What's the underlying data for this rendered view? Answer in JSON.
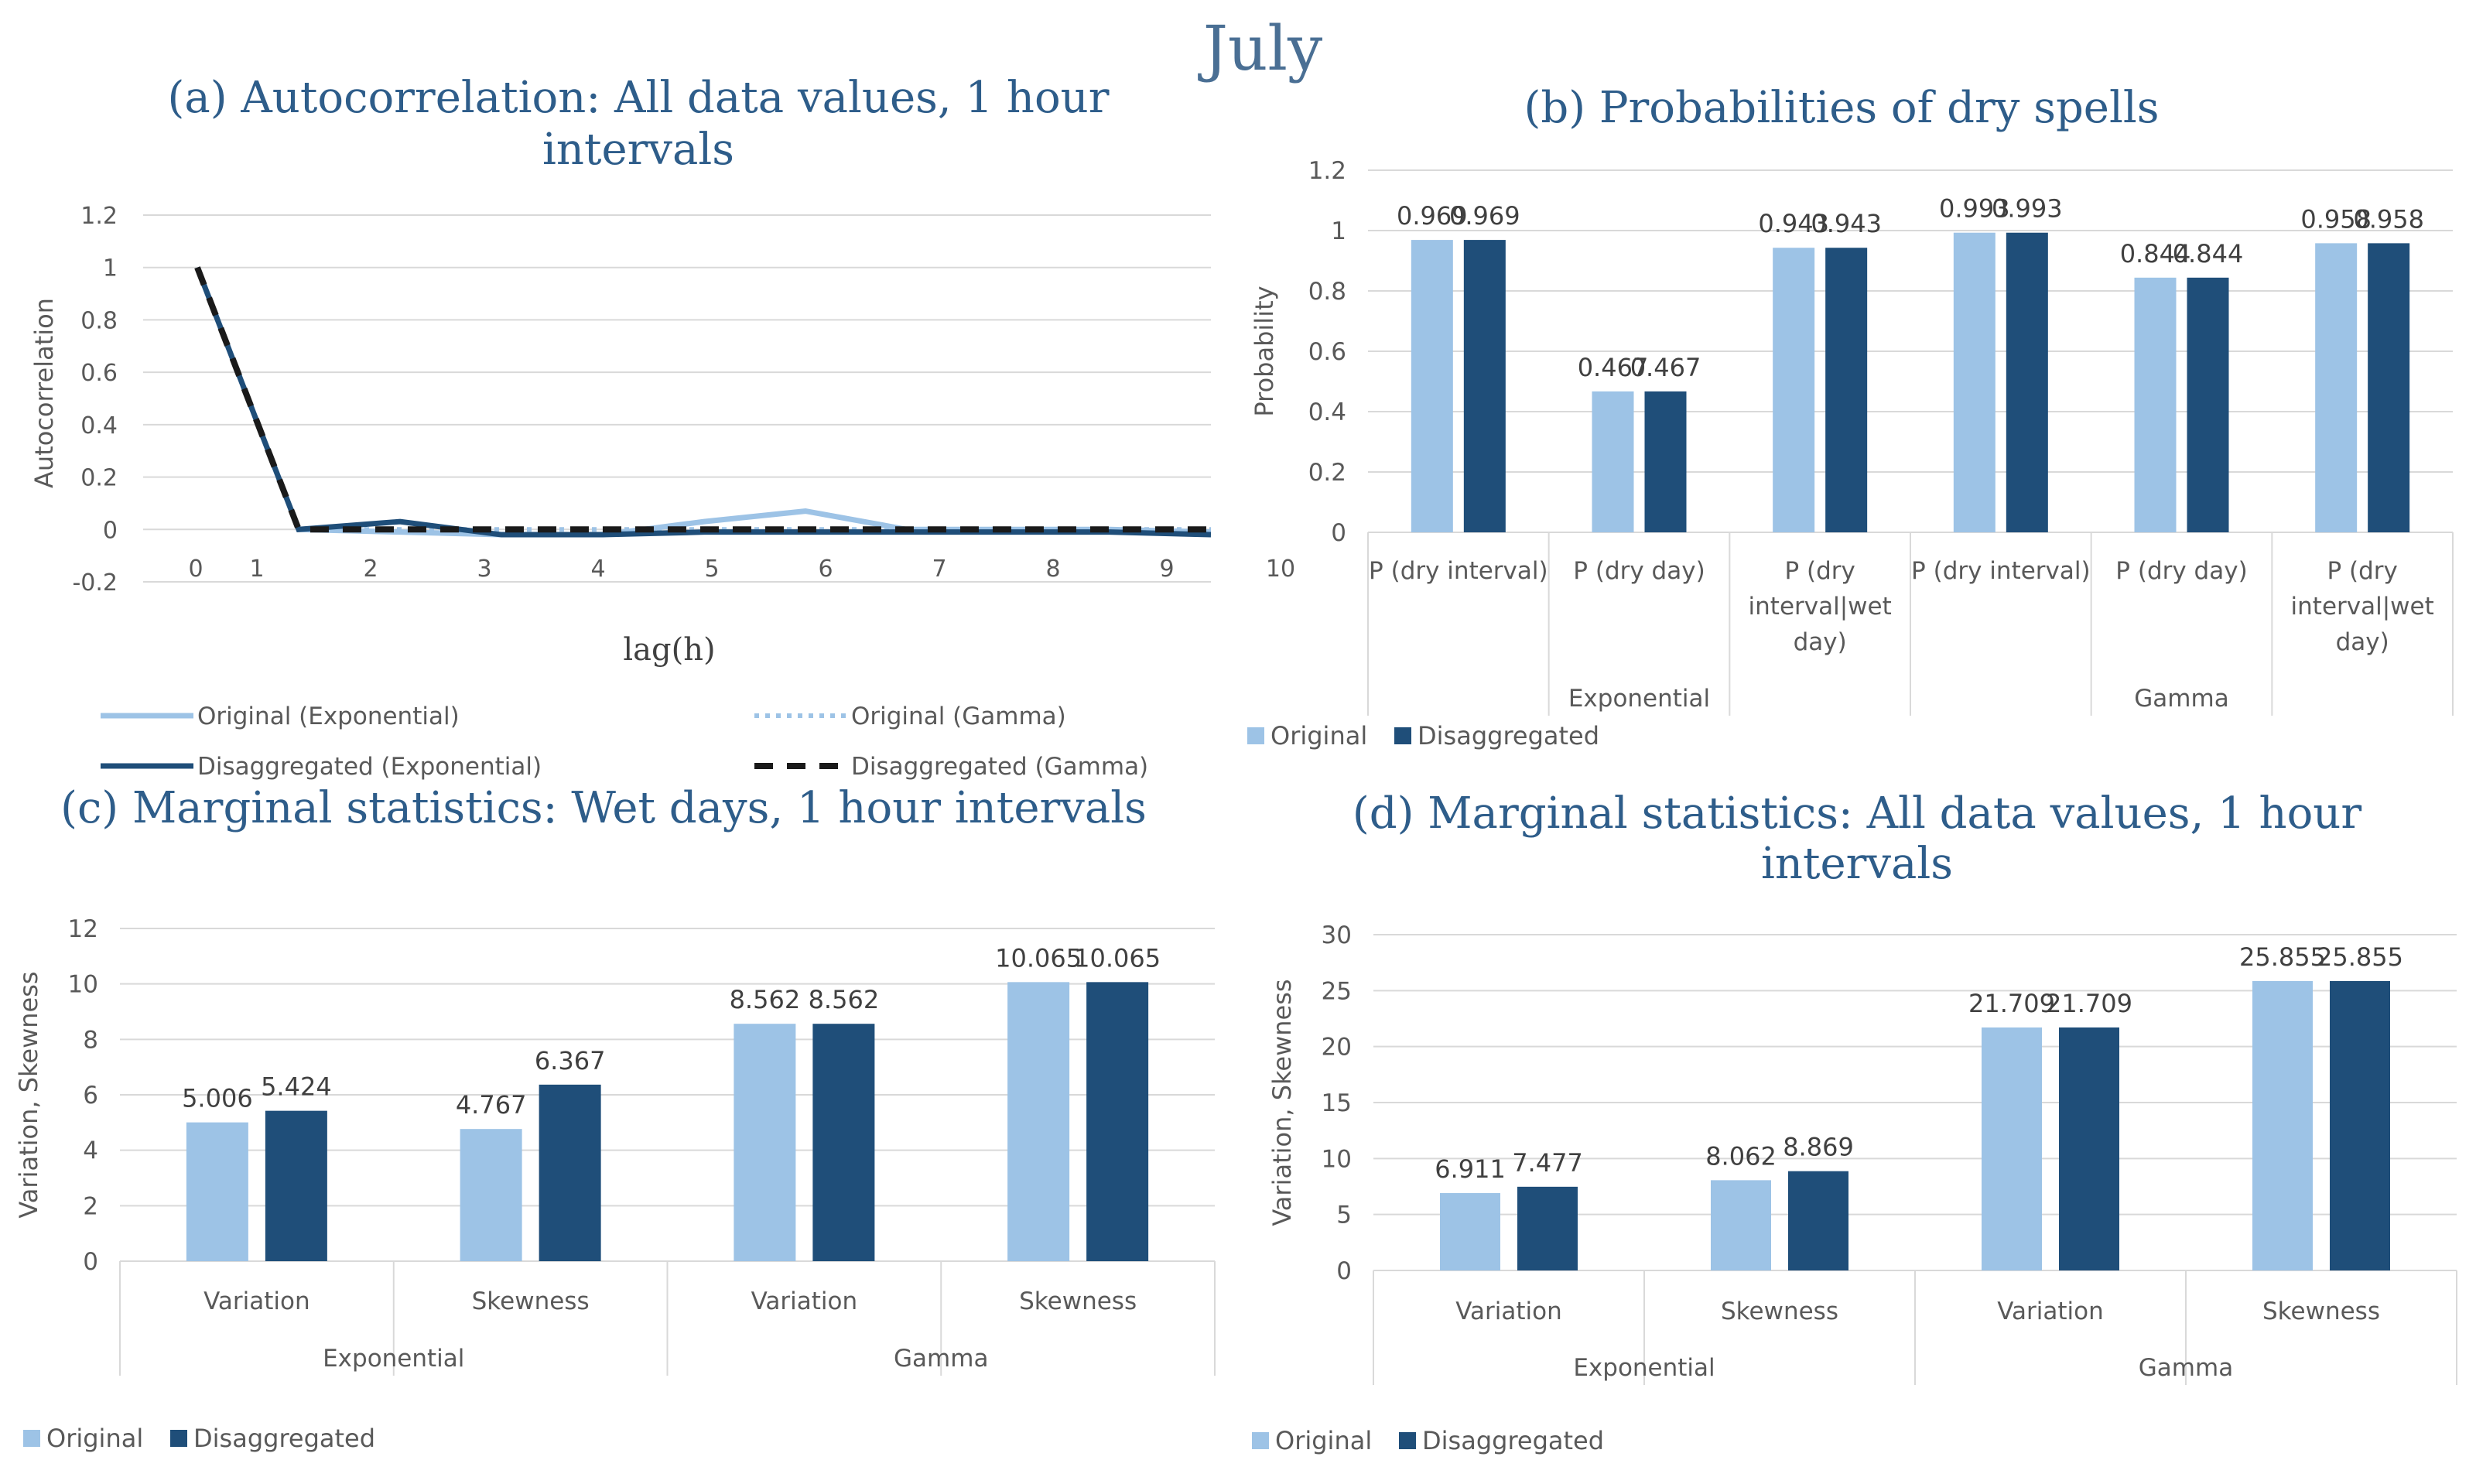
{
  "main_title": "July",
  "colors": {
    "original": "#9dc3e6",
    "disaggregated": "#1f4e79",
    "title": "#2e5d8a",
    "axis": "#d9d9d9",
    "text": "#595959"
  },
  "chart_data": [
    {
      "id": "a",
      "type": "line",
      "title_line1": "(a) Autocorrelation: All data values, 1 hour",
      "title_line2": "intervals",
      "xlabel": "lag(h)",
      "ylabel": "Autocorrelation",
      "x": [
        0,
        1,
        2,
        3,
        4,
        5,
        6,
        7,
        8,
        9,
        10
      ],
      "ylim": [
        -0.2,
        1.2
      ],
      "yticks": [
        "-0.2",
        "0",
        "0.2",
        "0.4",
        "0.6",
        "0.8",
        "1",
        "1.2"
      ],
      "series": [
        {
          "name": "Original (Exponential)",
          "style": "solid-light",
          "values": [
            1,
            0,
            -0.01,
            -0.02,
            -0.02,
            0.03,
            0.07,
            0.0,
            0.0,
            0.0,
            -0.01
          ]
        },
        {
          "name": "Original (Gamma)",
          "style": "dotted-light",
          "values": [
            1,
            0,
            0,
            0,
            0,
            0,
            0,
            0,
            0,
            0,
            0
          ]
        },
        {
          "name": "Disaggregated (Exponential)",
          "style": "solid-dark",
          "values": [
            1,
            0,
            0.03,
            -0.02,
            -0.02,
            -0.01,
            -0.01,
            -0.01,
            -0.01,
            -0.01,
            -0.02
          ]
        },
        {
          "name": "Disaggregated (Gamma)",
          "style": "dashed-black",
          "values": [
            1,
            0,
            0,
            0,
            0,
            0,
            0,
            0,
            0,
            0,
            0
          ]
        }
      ],
      "legend": [
        "Original (Exponential)",
        "Original (Gamma)",
        "Disaggregated (Exponential)",
        "Disaggregated (Gamma)"
      ]
    },
    {
      "id": "b",
      "type": "bar",
      "title": "(b) Probabilities of dry spells",
      "ylabel": "Probability",
      "ylim": [
        0,
        1.2
      ],
      "yticks": [
        "0",
        "0.2",
        "0.4",
        "0.6",
        "0.8",
        "1",
        "1.2"
      ],
      "categories": [
        [
          "P (dry interval)"
        ],
        [
          "P (dry day)"
        ],
        [
          "P (dry",
          "interval|wet",
          "day)"
        ],
        [
          "P (dry interval)"
        ],
        [
          "P (dry day)"
        ],
        [
          "P (dry",
          "interval|wet",
          "day)"
        ]
      ],
      "groups": [
        "Exponential",
        "Gamma"
      ],
      "series": [
        {
          "name": "Original",
          "values": [
            0.969,
            0.467,
            0.943,
            0.993,
            0.844,
            0.958
          ],
          "labels": [
            "0.969",
            "0.467",
            "0.943",
            "0.993",
            "0.844",
            "0.958"
          ]
        },
        {
          "name": "Disaggregated",
          "values": [
            0.969,
            0.467,
            0.943,
            0.993,
            0.844,
            0.958
          ],
          "labels": [
            "0.969",
            "0.467",
            "0.943",
            "0.993",
            "0.844",
            "0.958"
          ]
        }
      ]
    },
    {
      "id": "c",
      "type": "bar",
      "title": "(c) Marginal statistics: Wet days, 1 hour intervals",
      "ylabel": "Variation, Skewness",
      "ylim": [
        0,
        12
      ],
      "yticks": [
        "0",
        "2",
        "4",
        "6",
        "8",
        "10",
        "12"
      ],
      "categories": [
        [
          "Variation"
        ],
        [
          "Skewness"
        ],
        [
          "Variation"
        ],
        [
          "Skewness"
        ]
      ],
      "groups": [
        "Exponential",
        "Gamma"
      ],
      "series": [
        {
          "name": "Original",
          "values": [
            5.006,
            4.767,
            8.562,
            10.065
          ],
          "labels": [
            "5.006",
            "4.767",
            "8.562",
            "10.065"
          ]
        },
        {
          "name": "Disaggregated",
          "values": [
            5.424,
            6.367,
            8.562,
            10.065
          ],
          "labels": [
            "5.424",
            "6.367",
            "8.562",
            "10.065"
          ]
        }
      ]
    },
    {
      "id": "d",
      "type": "bar",
      "title_line1": "(d) Marginal statistics: All data values, 1 hour",
      "title_line2": "intervals",
      "ylabel": "Variation, Skewness",
      "ylim": [
        0,
        30
      ],
      "yticks": [
        "0",
        "5",
        "10",
        "15",
        "20",
        "25",
        "30"
      ],
      "categories": [
        [
          "Variation"
        ],
        [
          "Skewness"
        ],
        [
          "Variation"
        ],
        [
          "Skewness"
        ]
      ],
      "groups": [
        "Exponential",
        "Gamma"
      ],
      "series": [
        {
          "name": "Original",
          "values": [
            6.911,
            8.062,
            21.709,
            25.855
          ],
          "labels": [
            "6.911",
            "8.062",
            "21.709",
            "25.855"
          ]
        },
        {
          "name": "Disaggregated",
          "values": [
            7.477,
            8.869,
            21.709,
            25.855
          ],
          "labels": [
            "7.477",
            "8.869",
            "21.709",
            "25.855"
          ]
        }
      ]
    }
  ]
}
